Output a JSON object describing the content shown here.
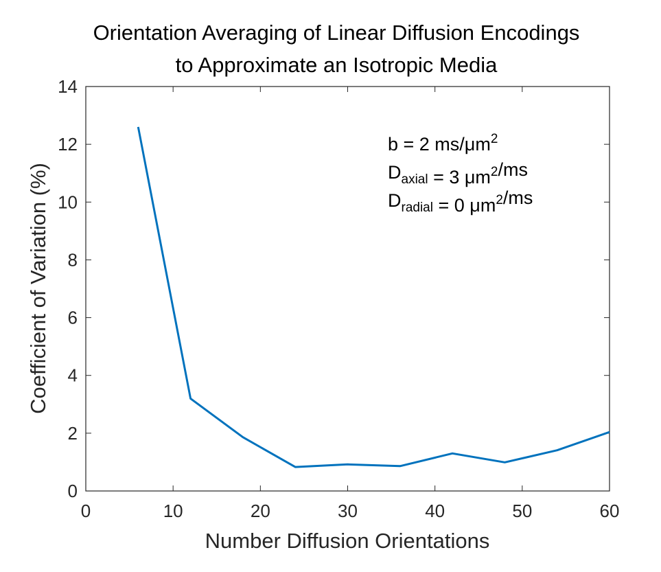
{
  "chart_data": {
    "type": "line",
    "title": [
      "Orientation Averaging of Linear Diffusion Encodings",
      "to Approximate an Isotropic Media"
    ],
    "xlabel": "Number Diffusion Orientations",
    "ylabel": "Coefficient of Variation (%)",
    "xlim": [
      0,
      60
    ],
    "ylim": [
      0,
      14
    ],
    "xticks": [
      0,
      10,
      20,
      30,
      40,
      50,
      60
    ],
    "yticks": [
      0,
      2,
      4,
      6,
      8,
      10,
      12,
      14
    ],
    "grid": false,
    "box": true,
    "series": [
      {
        "color": "#0072BD",
        "x": [
          6,
          12,
          18,
          24,
          30,
          36,
          42,
          48,
          54,
          60
        ],
        "y": [
          12.6,
          3.2,
          1.86,
          0.83,
          0.92,
          0.86,
          1.3,
          0.99,
          1.41,
          2.04
        ]
      }
    ],
    "annotation": [
      [
        {
          "t": "b = 2 ms/μm"
        },
        {
          "t": "2",
          "s": "sup"
        }
      ],
      [
        {
          "t": "D"
        },
        {
          "t": "axial",
          "s": "sub"
        },
        {
          "t": " = 3 μm"
        },
        {
          "t": "2",
          "s": "sup"
        },
        {
          "t": "/ms"
        }
      ],
      [
        {
          "t": "D"
        },
        {
          "t": "radial",
          "s": "sub"
        },
        {
          "t": " = 0 μm"
        },
        {
          "t": "2",
          "s": "sup"
        },
        {
          "t": "/ms"
        }
      ]
    ]
  }
}
